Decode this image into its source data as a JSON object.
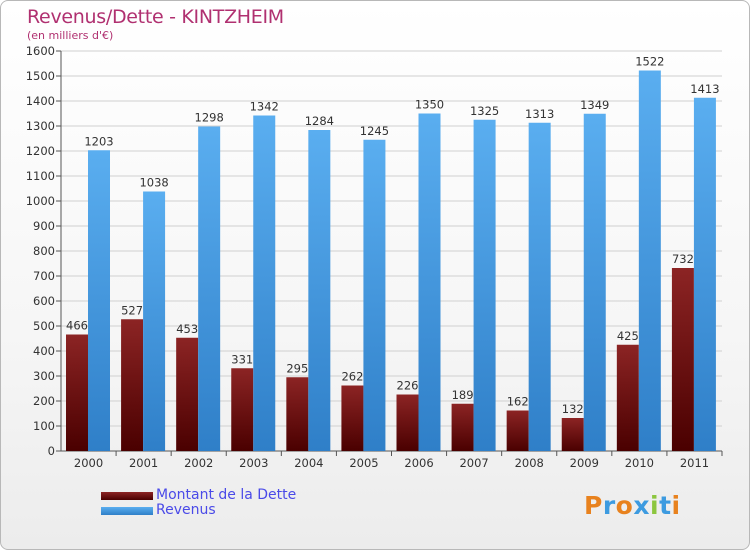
{
  "chart_data": {
    "type": "bar",
    "title": "Revenus/Dette - KINTZHEIM",
    "subtitle": "(en milliers d'€)",
    "categories": [
      "2000",
      "2001",
      "2002",
      "2003",
      "2004",
      "2005",
      "2006",
      "2007",
      "2008",
      "2009",
      "2010",
      "2011"
    ],
    "series": [
      {
        "name": "Montant de la Dette",
        "color": "#7a1515",
        "values": [
          466,
          527,
          453,
          331,
          295,
          262,
          226,
          189,
          162,
          132,
          425,
          732
        ]
      },
      {
        "name": "Revenus",
        "color": "#4fa3e8",
        "values": [
          1203,
          1038,
          1298,
          1342,
          1284,
          1245,
          1350,
          1325,
          1313,
          1349,
          1522,
          1413
        ]
      }
    ],
    "ylim": [
      0,
      1600
    ],
    "yticks": [
      0,
      100,
      200,
      300,
      400,
      500,
      600,
      700,
      800,
      900,
      1000,
      1100,
      1200,
      1300,
      1400,
      1500,
      1600
    ],
    "grid": true,
    "legend_position": "bottom-left"
  },
  "logo": {
    "text": "Proxiti",
    "colors": [
      "#e8821e",
      "#3d9be0",
      "#e8821e",
      "#3d9be0",
      "#8cc63f",
      "#3d9be0",
      "#e8821e"
    ]
  }
}
